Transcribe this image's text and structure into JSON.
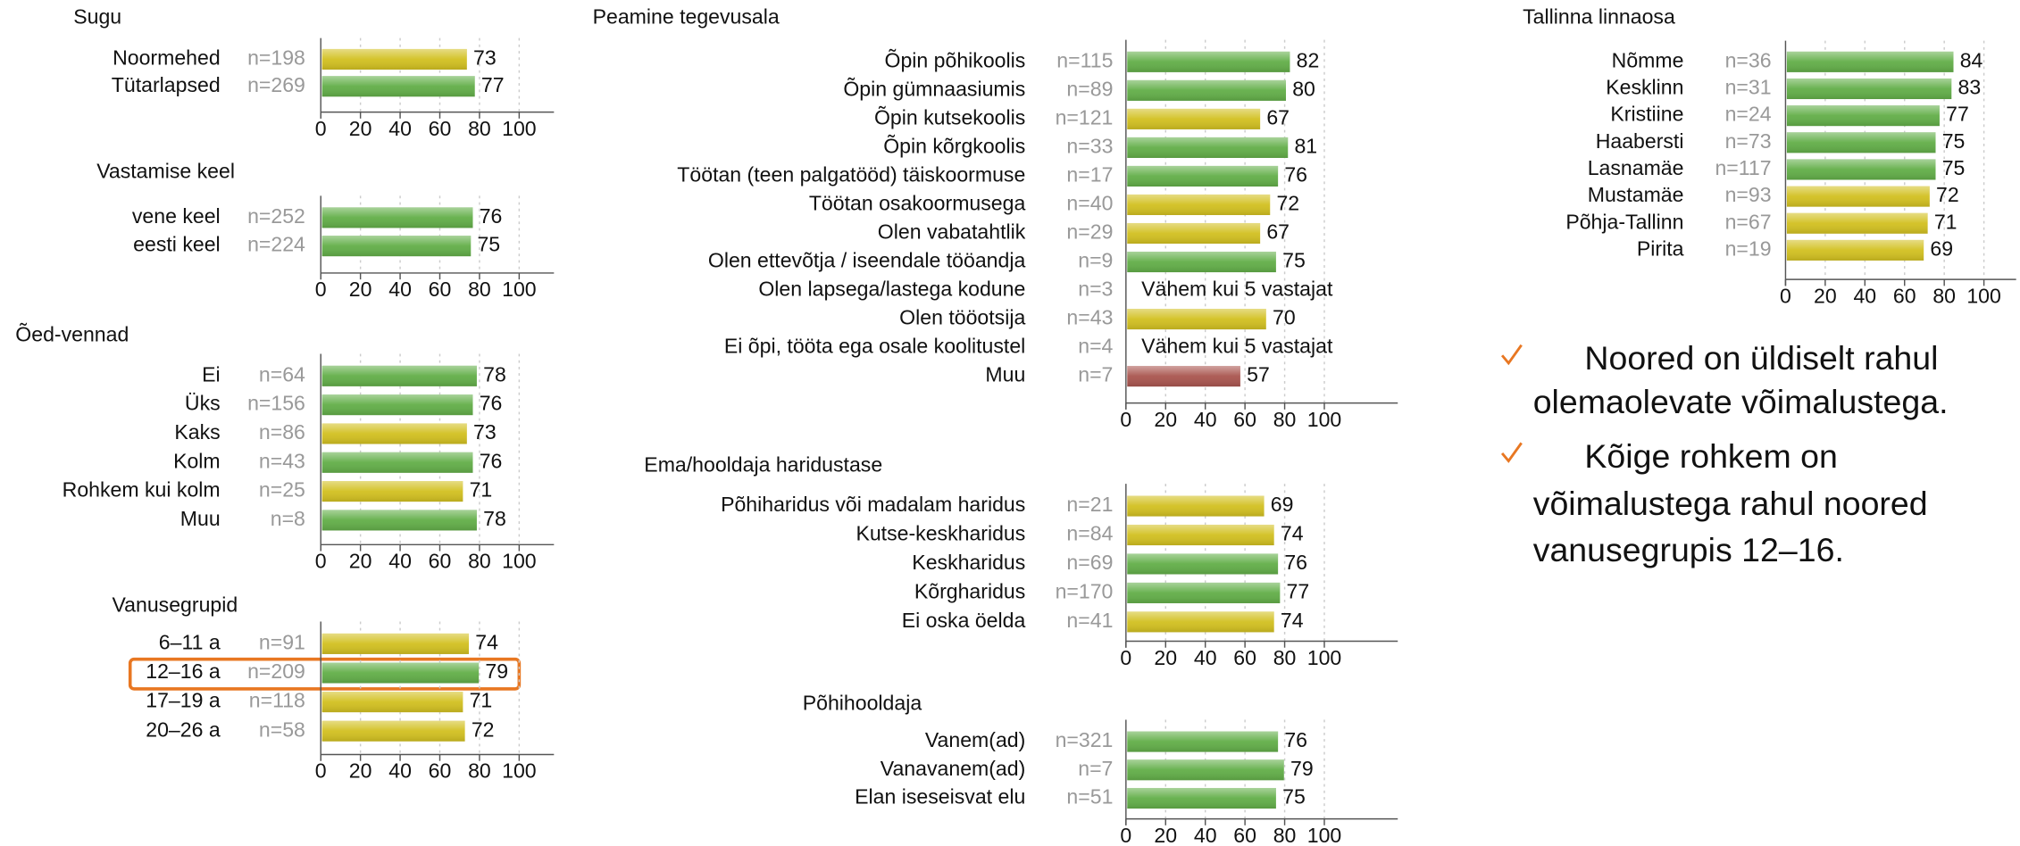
{
  "chart_data": [
    {
      "type": "bar",
      "title": "Sugu",
      "categories": [
        "Noormehed",
        "Tütarlapsed"
      ],
      "n": [
        "n=198",
        "n=269"
      ],
      "values": [
        73,
        77
      ],
      "colors": [
        "#d2c020",
        "#62ae48"
      ],
      "xlim": [
        0,
        100
      ],
      "xticks": [
        0,
        20,
        40,
        60,
        80,
        100
      ]
    },
    {
      "type": "bar",
      "title": "Vastamise keel",
      "categories": [
        "vene keel",
        "eesti keel"
      ],
      "n": [
        "n=252",
        "n=224"
      ],
      "values": [
        76,
        75
      ],
      "colors": [
        "#62ae48",
        "#62ae48"
      ],
      "xlim": [
        0,
        100
      ],
      "xticks": [
        0,
        20,
        40,
        60,
        80,
        100
      ]
    },
    {
      "type": "bar",
      "title": "Õed-vennad",
      "categories": [
        "Ei",
        "Üks",
        "Kaks",
        "Kolm",
        "Rohkem kui kolm",
        "Muu"
      ],
      "n": [
        "n=64",
        "n=156",
        "n=86",
        "n=43",
        "n=25",
        "n=8"
      ],
      "values": [
        78,
        76,
        73,
        76,
        71,
        78
      ],
      "colors": [
        "#62ae48",
        "#62ae48",
        "#d2c020",
        "#62ae48",
        "#d2c020",
        "#62ae48"
      ],
      "xlim": [
        0,
        100
      ],
      "xticks": [
        0,
        20,
        40,
        60,
        80,
        100
      ]
    },
    {
      "type": "bar",
      "title": "Vanusegrupid",
      "categories": [
        "6–11 a",
        "12–16 a",
        "17–19 a",
        "20–26 a"
      ],
      "n": [
        "n=91",
        "n=209",
        "n=118",
        "n=58"
      ],
      "values": [
        74,
        79,
        71,
        72
      ],
      "colors": [
        "#d2c020",
        "#62ae48",
        "#d2c020",
        "#d2c020"
      ],
      "xlim": [
        0,
        100
      ],
      "xticks": [
        0,
        20,
        40,
        60,
        80,
        100
      ]
    },
    {
      "type": "bar",
      "title": "Peamine tegevusala",
      "categories": [
        "Õpin põhikoolis",
        "Õpin gümnaasiumis",
        "Õpin kutsekoolis",
        "Õpin kõrgkoolis",
        "Töötan (teen palgatööd) täiskoormuse",
        "Töötan osakoormusega",
        "Olen vabatahtlik",
        "Olen ettevõtja / iseendale tööandja",
        "Olen lapsega/lastega kodune",
        "Olen tööotsija",
        "Ei õpi, tööta ega osale koolitustel",
        "Muu"
      ],
      "n": [
        "n=115",
        "n=89",
        "n=121",
        "n=33",
        "n=17",
        "n=40",
        "n=29",
        "n=9",
        "n=3",
        "n=43",
        "n=4",
        "n=7"
      ],
      "values": [
        82,
        80,
        67,
        81,
        76,
        72,
        67,
        75,
        null,
        70,
        null,
        57
      ],
      "value_labels": [
        "82",
        "80",
        "67",
        "81",
        "76",
        "72",
        "67",
        "75",
        "Vähem kui 5 vastajat",
        "70",
        "Vähem kui 5 vastajat",
        "57"
      ],
      "colors": [
        "#62ae48",
        "#62ae48",
        "#d2c020",
        "#62ae48",
        "#62ae48",
        "#d2c020",
        "#d2c020",
        "#62ae48",
        null,
        "#d2c020",
        null,
        "#a9554f"
      ],
      "xlim": [
        0,
        100
      ],
      "xticks": [
        0,
        20,
        40,
        60,
        80,
        100
      ]
    },
    {
      "type": "bar",
      "title": "Ema/hooldaja haridustase",
      "categories": [
        "Põhiharidus või madalam haridus",
        "Kutse-keskharidus",
        "Keskharidus",
        "Kõrgharidus",
        "Ei oska öelda"
      ],
      "n": [
        "n=21",
        "n=84",
        "n=69",
        "n=170",
        "n=41"
      ],
      "values": [
        69,
        74,
        76,
        77,
        74
      ],
      "colors": [
        "#d2c020",
        "#d2c020",
        "#62ae48",
        "#62ae48",
        "#d2c020"
      ],
      "xlim": [
        0,
        100
      ],
      "xticks": [
        0,
        20,
        40,
        60,
        80,
        100
      ]
    },
    {
      "type": "bar",
      "title": "Põhihooldaja",
      "categories": [
        "Vanem(ad)",
        "Vanavanem(ad)",
        "Elan iseseisvat elu"
      ],
      "n": [
        "n=321",
        "n=7",
        "n=51"
      ],
      "values": [
        76,
        79,
        75
      ],
      "colors": [
        "#62ae48",
        "#62ae48",
        "#62ae48"
      ],
      "xlim": [
        0,
        100
      ],
      "xticks": [
        0,
        20,
        40,
        60,
        80,
        100
      ]
    },
    {
      "type": "bar",
      "title": "Tallinna linnaosa",
      "categories": [
        "Nõmme",
        "Kesklinn",
        "Kristiine",
        "Haabersti",
        "Lasnamäe",
        "Mustamäe",
        "Põhja-Tallinn",
        "Pirita"
      ],
      "n": [
        "n=36",
        "n=31",
        "n=24",
        "n=73",
        "n=117",
        "n=93",
        "n=67",
        "n=19"
      ],
      "values": [
        84,
        83,
        77,
        75,
        75,
        72,
        71,
        69
      ],
      "colors": [
        "#62ae48",
        "#62ae48",
        "#62ae48",
        "#62ae48",
        "#62ae48",
        "#d2c020",
        "#d2c020",
        "#d2c020"
      ],
      "xlim": [
        0,
        100
      ],
      "xticks": [
        0,
        20,
        40,
        60,
        80,
        100
      ]
    }
  ],
  "notes": [
    [
      "Noored on üldiselt rahul",
      "olemaolevate võimalustega."
    ],
    [
      "Kõige rohkem on",
      "võimalustega rahul noored",
      "vanusegrupis 12–16."
    ]
  ]
}
